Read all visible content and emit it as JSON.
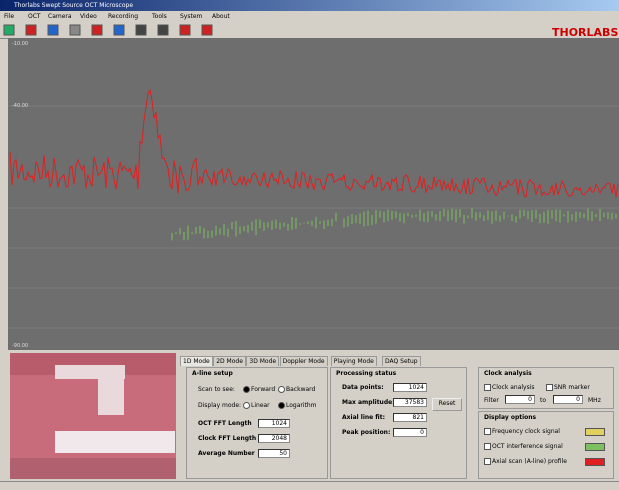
{
  "window": {
    "title": "Thorlabs Swept Source OCT Microscope",
    "logo": "THORLABS"
  },
  "menu": [
    "File",
    "OCT",
    "Camera",
    "Video",
    "Recording",
    "Tools",
    "System",
    "About"
  ],
  "plot": {
    "y_labels": [
      "-10.00",
      "-40.00",
      "-90.00"
    ]
  },
  "tabs": [
    "1D Mode",
    "2D Mode",
    "3D Mode",
    "Doppler Mode",
    "Playing Mode",
    "DAQ Setup"
  ],
  "aline": {
    "title": "A-line setup",
    "scan_label": "Scan to see:",
    "scan_options": [
      "Forward",
      "Backward"
    ],
    "display_label": "Display mode:",
    "display_options": [
      "Linear",
      "Logarithm"
    ],
    "fields": [
      {
        "label": "OCT FFT Length",
        "value": "1024"
      },
      {
        "label": "Clock FFT Length",
        "value": "2048"
      },
      {
        "label": "Average Number",
        "value": "50"
      }
    ]
  },
  "processing": {
    "title": "Processing status",
    "fields": [
      {
        "label": "Data points:",
        "value": "1024"
      },
      {
        "label": "Max amplitude:",
        "value": "37583"
      },
      {
        "label": "Axial line fit:",
        "value": "821"
      },
      {
        "label": "Peak position:",
        "value": "0"
      }
    ],
    "button": "Reset"
  },
  "clock": {
    "title": "Clock analysis",
    "options": [
      "Clock analysis",
      "SNR marker"
    ],
    "filter_label": "Filter",
    "from": "0",
    "to_label": "to",
    "to": "0",
    "unit": "MHz"
  },
  "display": {
    "title": "Display options",
    "options": [
      {
        "label": "Frequency clock signal",
        "color": "#e0d060"
      },
      {
        "label": "OCT interference signal",
        "color": "#7cc060"
      },
      {
        "label": "Axial scan (A-line) profile",
        "color": "#e02020"
      }
    ]
  }
}
